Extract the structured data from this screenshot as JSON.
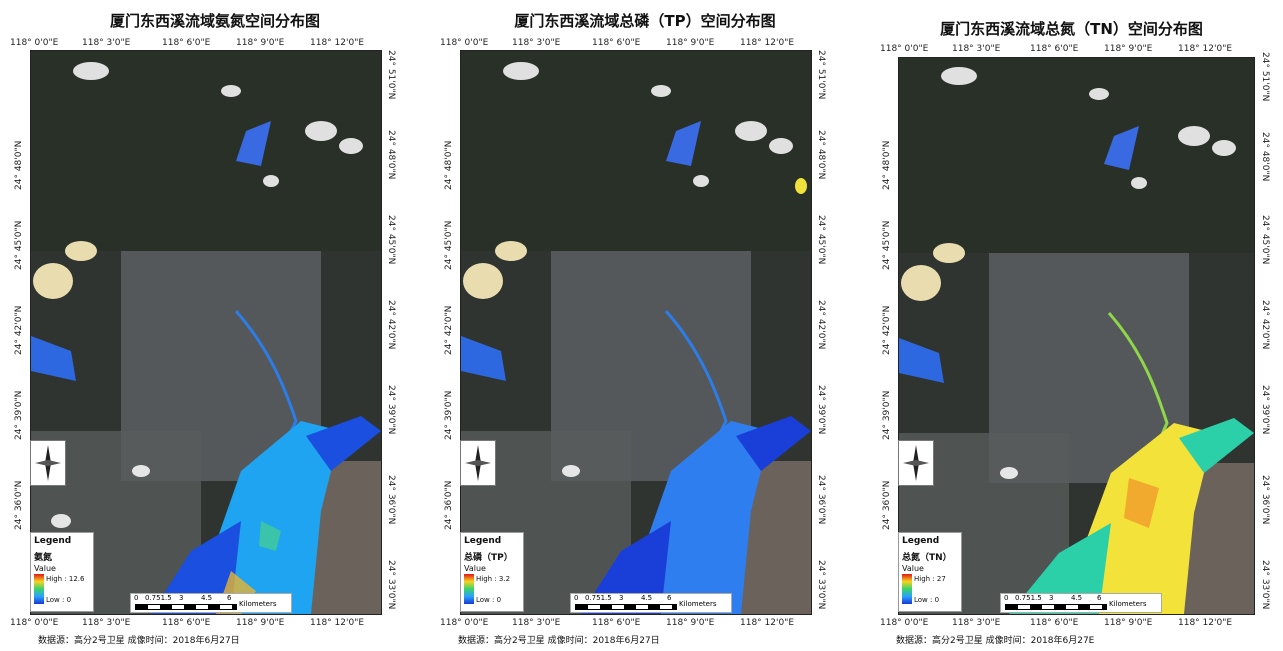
{
  "maps": [
    {
      "title": "厦门东西溪流域氨氮空间分布图",
      "legend_title": "Legend",
      "legend_var": "氨氮",
      "legend_value": "Value",
      "legend_high": "High : 12.6",
      "legend_low": "Low : 0",
      "water_high_color": "#1ea4f0",
      "water_low_color": "#1a4fe0",
      "source": "数据源：高分2号卫星    成像时间：2018年6月27日"
    },
    {
      "title": "厦门东西溪流域总磷（TP）空间分布图",
      "legend_title": "Legend",
      "legend_var": "总磷（TP）",
      "legend_value": "Value",
      "legend_high": "High : 3.2",
      "legend_low": "Low : 0",
      "water_high_color": "#2f7ef0",
      "water_low_color": "#1a3fd8",
      "source": "数据源：高分2号卫星    成像时间：2018年6月27日"
    },
    {
      "title": "厦门东西溪流域总氮（TN）空间分布图",
      "legend_title": "Legend",
      "legend_var": "总氮（TN）",
      "legend_value": "Value",
      "legend_high": "High : 27",
      "legend_low": "Low : 0",
      "water_high_color": "#f2e23a",
      "water_low_color": "#2bd0a8",
      "source": "数据源：高分2号卫星    成像时间：2018年6月27E"
    }
  ],
  "top_ticks": [
    "118° 0'0\"E",
    "118° 3'0\"E",
    "118° 6'0\"E",
    "118° 9'0\"E",
    "118° 12'0\"E"
  ],
  "bottom_ticks": [
    "118° 0'0\"E",
    "118° 3'0\"E",
    "118° 6'0\"E",
    "118° 9'0\"E",
    "118° 12'0\"E"
  ],
  "lat_ticks": [
    "24° 51'0\"N",
    "24° 48'0\"N",
    "24° 45'0\"N",
    "24° 42'0\"N",
    "24° 39'0\"N",
    "24° 36'0\"N",
    "24° 33'0\"N"
  ],
  "scale_labels": [
    "0",
    "0.751.5",
    "3",
    "4.5",
    "6"
  ],
  "scale_units": "Kilometers"
}
